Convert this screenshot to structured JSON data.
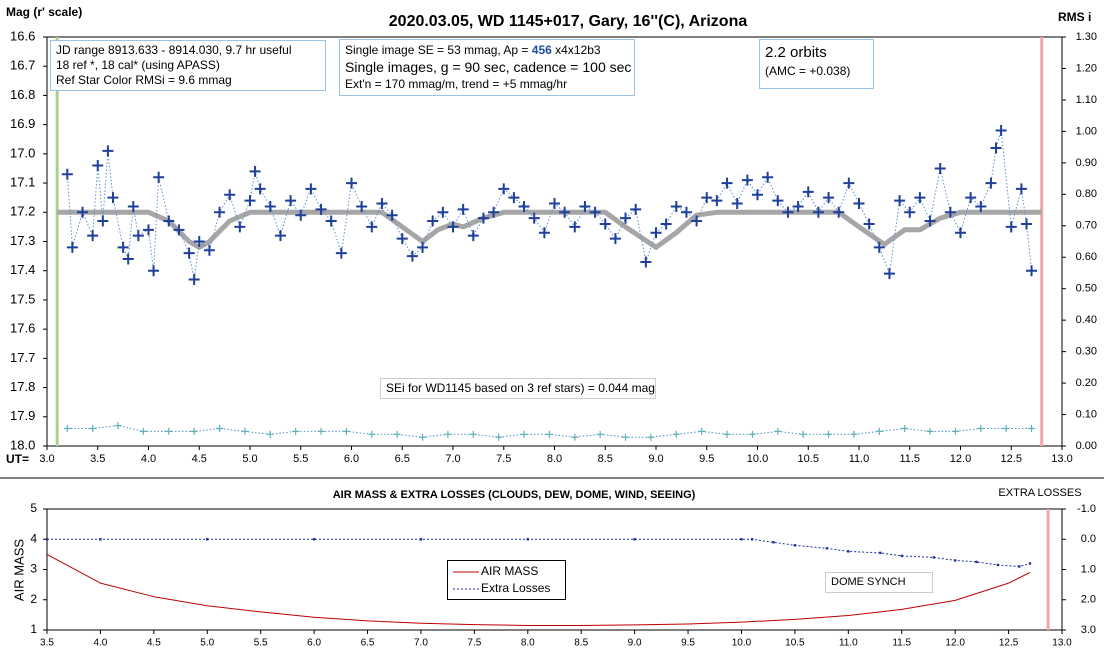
{
  "chart_data": [
    {
      "type": "scatter",
      "title": "2020.03.05, WD 1145+017, Gary, 16''(C), Arizona",
      "ylabel": "Mag (r' scale)",
      "y2label": "RMS i",
      "xlabel": "UT=",
      "xlim": [
        3,
        13
      ],
      "ylim": [
        16.6,
        18.0
      ],
      "invert_y": true,
      "y2lim": [
        0,
        1.3
      ],
      "xticks": [
        {
          "value": 3,
          "label": "3.0"
        },
        3.5,
        {
          "value": 4,
          "label": "4.0"
        },
        4.5,
        {
          "value": 5,
          "label": "5.0"
        },
        5.5,
        {
          "value": 6,
          "label": "6.0"
        },
        6.5,
        {
          "value": 7,
          "label": "7.0"
        },
        7.5,
        {
          "value": 8,
          "label": "8.0"
        },
        8.5,
        {
          "value": 9,
          "label": "9.0"
        },
        9.5,
        {
          "value": 10,
          "label": "10.0"
        },
        10.5,
        {
          "value": 11,
          "label": "11.0"
        },
        11.5,
        {
          "value": 12,
          "label": "12.0"
        },
        12.5,
        {
          "value": 13,
          "label": "13.0"
        }
      ],
      "yticks": [
        16.6,
        16.7,
        16.8,
        16.9,
        {
          "value": 17,
          "label": "17.0"
        },
        17.1,
        17.2,
        17.3,
        17.4,
        17.5,
        17.6,
        17.7,
        17.8,
        17.9,
        {
          "value": 18,
          "label": "18.0"
        }
      ],
      "y2ticks": [
        {
          "value": 1.3,
          "label": "1.30"
        },
        {
          "value": 1.2,
          "label": "1.20"
        },
        {
          "value": 1.1,
          "label": "1.10"
        },
        {
          "value": 1,
          "label": "1.00"
        },
        {
          "value": 0.9,
          "label": "0.90"
        },
        {
          "value": 0.8,
          "label": "0.80"
        },
        {
          "value": 0.7,
          "label": "0.70"
        },
        {
          "value": 0.6,
          "label": "0.60"
        },
        {
          "value": 0.5,
          "label": "0.50"
        },
        {
          "value": 0.4,
          "label": "0.40"
        },
        {
          "value": 0.3,
          "label": "0.30"
        },
        {
          "value": 0.2,
          "label": "0.20"
        },
        {
          "value": 0.1,
          "label": "0.10"
        },
        {
          "value": 0,
          "label": "0.00"
        }
      ],
      "grid": false,
      "vlines": [
        {
          "x": 3.1,
          "color": "#a9d18e"
        },
        {
          "x": 12.8,
          "color": "#f4a6a6"
        }
      ],
      "series": [
        {
          "color": "#4a90c8",
          "line": "dotted",
          "width": 1,
          "marker": "plus-small",
          "markercolor": "#5fb0b8",
          "x": [
            3.2,
            3.45,
            3.7,
            3.95,
            4.2,
            4.45,
            4.7,
            4.95,
            5.2,
            5.45,
            5.7,
            5.95,
            6.2,
            6.45,
            6.7,
            6.95,
            7.2,
            7.45,
            7.7,
            7.95,
            8.2,
            8.45,
            8.7,
            8.95,
            9.2,
            9.45,
            9.7,
            9.95,
            10.2,
            10.45,
            10.7,
            10.95,
            11.2,
            11.45,
            11.7,
            11.95,
            12.2,
            12.45,
            12.7
          ],
          "values": [
            17.94,
            17.94,
            17.93,
            17.95,
            17.95,
            17.95,
            17.94,
            17.95,
            17.96,
            17.95,
            17.95,
            17.95,
            17.96,
            17.96,
            17.97,
            17.96,
            17.96,
            17.97,
            17.96,
            17.96,
            17.97,
            17.96,
            17.97,
            17.97,
            17.96,
            17.95,
            17.96,
            17.96,
            17.95,
            17.96,
            17.96,
            17.96,
            17.95,
            17.94,
            17.95,
            17.95,
            17.94,
            17.94,
            17.94
          ]
        },
        {
          "color": "#a6a6a6",
          "line": "solid",
          "width": 5,
          "marker": null,
          "x": [
            3.1,
            4.0,
            4.2,
            4.4,
            4.5,
            4.6,
            4.8,
            5.0,
            6.3,
            6.5,
            6.7,
            6.85,
            7.0,
            7.1,
            7.3,
            7.5,
            8.5,
            8.7,
            9.0,
            9.2,
            9.4,
            9.6,
            10.8,
            11.0,
            11.25,
            11.45,
            11.6,
            11.8,
            12.0,
            12.8
          ],
          "values": [
            17.2,
            17.2,
            17.23,
            17.3,
            17.32,
            17.3,
            17.23,
            17.2,
            17.2,
            17.25,
            17.3,
            17.26,
            17.24,
            17.25,
            17.22,
            17.2,
            17.2,
            17.25,
            17.32,
            17.27,
            17.21,
            17.2,
            17.2,
            17.25,
            17.31,
            17.26,
            17.26,
            17.22,
            17.2,
            17.2
          ]
        },
        {
          "color": "#5b8fd0",
          "line": "dotted",
          "width": 1,
          "marker": "plus",
          "markercolor": "#1f3f9a",
          "x": [
            3.2,
            3.25,
            3.35,
            3.45,
            3.5,
            3.55,
            3.6,
            3.65,
            3.75,
            3.8,
            3.85,
            3.9,
            4.0,
            4.05,
            4.1,
            4.2,
            4.3,
            4.4,
            4.45,
            4.5,
            4.6,
            4.7,
            4.8,
            4.9,
            5.0,
            5.05,
            5.1,
            5.2,
            5.3,
            5.4,
            5.5,
            5.6,
            5.7,
            5.8,
            5.9,
            6.0,
            6.1,
            6.2,
            6.3,
            6.4,
            6.5,
            6.6,
            6.7,
            6.8,
            6.9,
            7.0,
            7.1,
            7.2,
            7.3,
            7.4,
            7.5,
            7.6,
            7.7,
            7.8,
            7.9,
            8.0,
            8.1,
            8.2,
            8.3,
            8.4,
            8.5,
            8.6,
            8.7,
            8.8,
            8.9,
            9.0,
            9.1,
            9.2,
            9.3,
            9.4,
            9.5,
            9.6,
            9.7,
            9.8,
            9.9,
            10.0,
            10.1,
            10.2,
            10.3,
            10.4,
            10.5,
            10.6,
            10.7,
            10.8,
            10.9,
            11.0,
            11.1,
            11.2,
            11.3,
            11.4,
            11.5,
            11.6,
            11.7,
            11.8,
            11.9,
            12.0,
            12.1,
            12.2,
            12.3,
            12.35,
            12.4,
            12.5,
            12.6,
            12.65,
            12.7
          ],
          "values": [
            17.07,
            17.32,
            17.2,
            17.28,
            17.04,
            17.23,
            16.99,
            17.15,
            17.32,
            17.36,
            17.18,
            17.28,
            17.26,
            17.4,
            17.08,
            17.23,
            17.26,
            17.34,
            17.43,
            17.3,
            17.33,
            17.2,
            17.14,
            17.25,
            17.16,
            17.06,
            17.12,
            17.18,
            17.28,
            17.16,
            17.21,
            17.12,
            17.19,
            17.23,
            17.34,
            17.1,
            17.18,
            17.25,
            17.17,
            17.21,
            17.29,
            17.35,
            17.32,
            17.23,
            17.2,
            17.25,
            17.19,
            17.28,
            17.22,
            17.2,
            17.12,
            17.15,
            17.18,
            17.22,
            17.27,
            17.17,
            17.2,
            17.25,
            17.18,
            17.2,
            17.24,
            17.29,
            17.22,
            17.19,
            17.37,
            17.27,
            17.24,
            17.18,
            17.2,
            17.23,
            17.15,
            17.16,
            17.1,
            17.17,
            17.09,
            17.14,
            17.08,
            17.16,
            17.2,
            17.18,
            17.13,
            17.2,
            17.15,
            17.2,
            17.1,
            17.17,
            17.24,
            17.32,
            17.41,
            17.16,
            17.2,
            17.15,
            17.23,
            17.05,
            17.2,
            17.27,
            17.15,
            17.18,
            17.1,
            16.98,
            16.92,
            17.25,
            17.12,
            17.24,
            17.4
          ]
        }
      ],
      "annotations": {
        "box1": [
          "JD range 8913.633 - 8914.030, 9.7 hr useful",
          "18 ref *, 18 cal* (using APASS)",
          "Ref Star Color RMSi = 9.6 mmag"
        ],
        "box2": {
          "line1": [
            "Single image SE = 53 mmag, Ap =",
            "456",
            "x4x12b3"
          ],
          "line2": "Single images, g = 90 sec, cadence = 100 sec",
          "line3": "Ext'n = 170 mmag/m, trend = +5 mmag/hr"
        },
        "box3": [
          "2.2 orbits",
          "(AMC = +0.038)"
        ],
        "se_note": "SEi for WD1145 based on 3 ref stars) = 0.044 mag"
      }
    },
    {
      "type": "line",
      "title": "AIR MASS & EXTRA LOSSES (CLOUDS, DEW, DOME, WIND, SEEING)",
      "ylabel": "AIR MASS",
      "y2label": "EXTRA LOSSES",
      "xlim": [
        3.5,
        13
      ],
      "ylim": [
        1,
        5
      ],
      "y2lim": [
        -1,
        3
      ],
      "invert_y2": true,
      "xticks": [
        3.5,
        {
          "value": 4,
          "label": "4.0"
        },
        4.5,
        {
          "value": 5,
          "label": "5.0"
        },
        5.5,
        {
          "value": 6,
          "label": "6.0"
        },
        6.5,
        {
          "value": 7,
          "label": "7.0"
        },
        7.5,
        {
          "value": 8,
          "label": "8.0"
        },
        8.5,
        {
          "value": 9,
          "label": "9.0"
        },
        9.5,
        {
          "value": 10,
          "label": "10.0"
        },
        10.5,
        {
          "value": 11,
          "label": "11.0"
        },
        11.5,
        {
          "value": 12,
          "label": "12.0"
        },
        12.5,
        {
          "value": 13,
          "label": "13.0"
        }
      ],
      "yticks": [
        1,
        2,
        3,
        4,
        5
      ],
      "y2ticks": [
        {
          "value": -1,
          "label": "-1.0"
        },
        {
          "value": 0,
          "label": "0.0"
        },
        {
          "value": 1,
          "label": "1.0"
        },
        {
          "value": 2,
          "label": "2.0"
        },
        {
          "value": 3,
          "label": "3.0"
        }
      ],
      "grid": false,
      "vlines": [
        {
          "x": 12.87,
          "color": "#f4a6a6"
        }
      ],
      "annotation": "DOME SYNCH",
      "series": [
        {
          "name": "AIR MASS",
          "color": "#c00000",
          "line": "solid",
          "width": 1,
          "marker": null,
          "x": [
            3.5,
            4.0,
            4.5,
            5.0,
            5.5,
            6.0,
            6.5,
            7.0,
            7.5,
            8.0,
            8.5,
            9.0,
            9.5,
            10.0,
            10.5,
            11.0,
            11.5,
            12.0,
            12.5,
            12.7
          ],
          "values": [
            3.5,
            2.55,
            2.1,
            1.8,
            1.6,
            1.42,
            1.3,
            1.22,
            1.18,
            1.15,
            1.15,
            1.17,
            1.2,
            1.26,
            1.35,
            1.48,
            1.68,
            1.98,
            2.55,
            2.9
          ]
        },
        {
          "name": "Extra Losses",
          "color": "#1f2f9a",
          "line": "dashed",
          "width": 1,
          "marker": "dot",
          "axis": "y2",
          "x": [
            3.5,
            4.0,
            5.0,
            6.0,
            7.0,
            8.0,
            9.0,
            10.0,
            10.1,
            10.3,
            10.5,
            10.8,
            11.0,
            11.3,
            11.5,
            11.8,
            12.0,
            12.2,
            12.4,
            12.6,
            12.7
          ],
          "values": [
            0,
            0,
            0,
            0,
            0,
            0,
            0,
            0,
            0,
            0.1,
            0.2,
            0.3,
            0.4,
            0.45,
            0.55,
            0.6,
            0.7,
            0.75,
            0.85,
            0.9,
            0.8
          ]
        }
      ]
    }
  ]
}
